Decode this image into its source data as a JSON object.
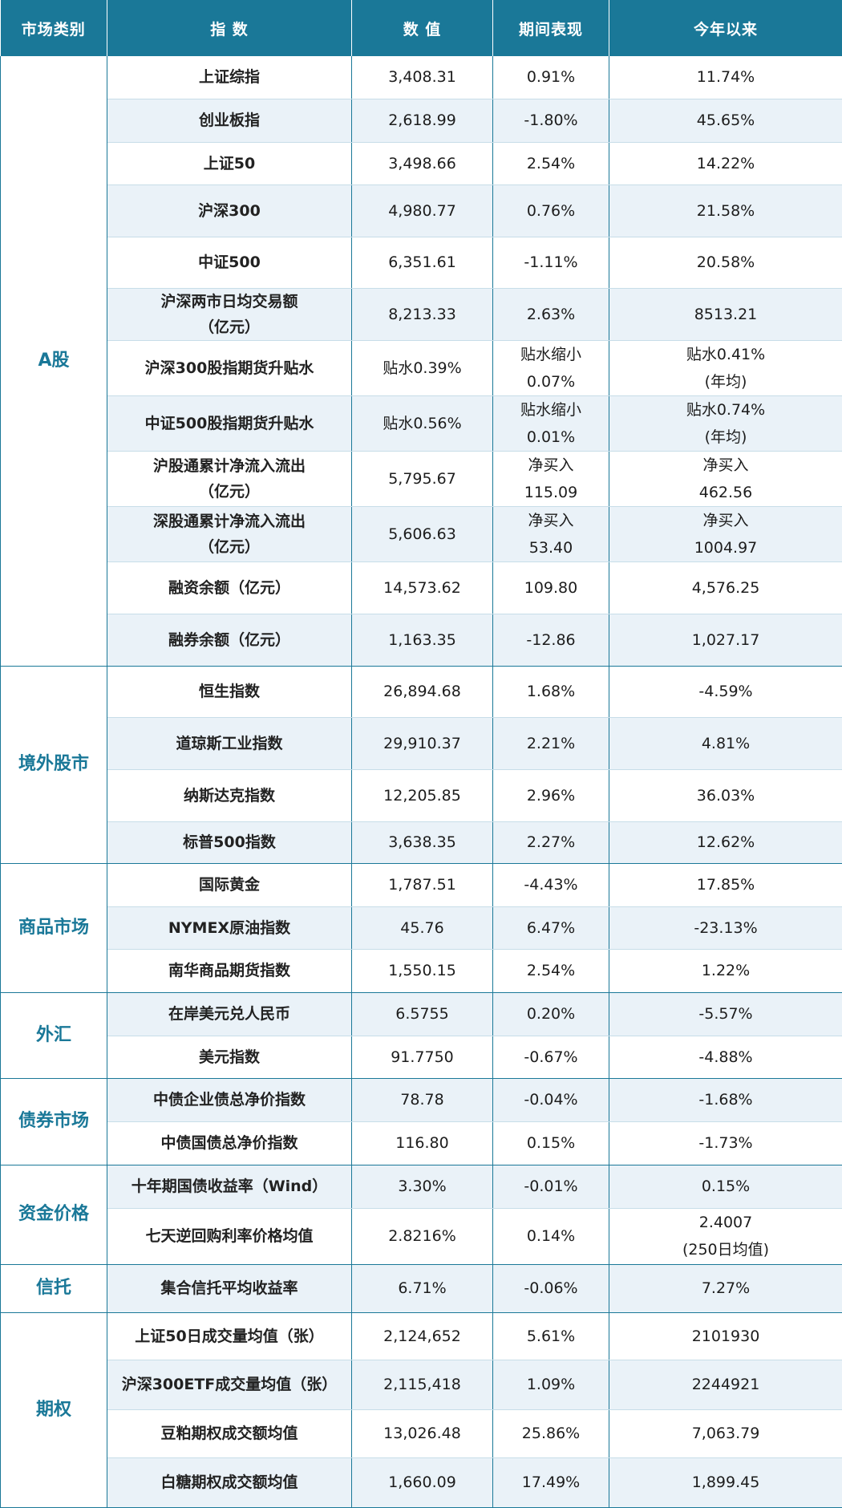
{
  "header": {
    "col_category": "市场类别",
    "col_index": "指 数",
    "col_value": "数 值",
    "col_period": "期间表现",
    "col_ytd": "今年以来"
  },
  "groups": [
    {
      "category": "A股",
      "rows": [
        {
          "index": "上证综指",
          "value": "3,408.31",
          "period": "0.91%",
          "ytd": "11.74%"
        },
        {
          "index": "创业板指",
          "value": "2,618.99",
          "period": "-1.80%",
          "ytd": "45.65%"
        },
        {
          "index": "上证50",
          "value": "3,498.66",
          "period": "2.54%",
          "ytd": "14.22%"
        },
        {
          "index": "沪深300",
          "value": "4,980.77",
          "period": "0.76%",
          "ytd": "21.58%"
        },
        {
          "index": "中证500",
          "value": "6,351.61",
          "period": "-1.11%",
          "ytd": "20.58%"
        },
        {
          "index": "沪深两市日均交易额\n（亿元）",
          "value": "8,213.33",
          "period": "2.63%",
          "ytd": "8513.21"
        },
        {
          "index": "沪深300股指期货升贴水",
          "value": "贴水0.39%",
          "period": "贴水缩小\n0.07%",
          "ytd": "贴水0.41%\n(年均)"
        },
        {
          "index": "中证500股指期货升贴水",
          "value": "贴水0.56%",
          "period": "贴水缩小\n0.01%",
          "ytd": "贴水0.74%\n(年均)"
        },
        {
          "index": "沪股通累计净流入流出\n（亿元）",
          "value": "5,795.67",
          "period": "净买入\n115.09",
          "ytd": "净买入\n462.56"
        },
        {
          "index": "深股通累计净流入流出\n（亿元）",
          "value": "5,606.63",
          "period": "净买入\n53.40",
          "ytd": "净买入\n1004.97"
        },
        {
          "index": "融资余额（亿元）",
          "value": "14,573.62",
          "period": "109.80",
          "ytd": "4,576.25"
        },
        {
          "index": "融券余额（亿元）",
          "value": "1,163.35",
          "period": "-12.86",
          "ytd": "1,027.17"
        }
      ]
    },
    {
      "category": "境外股市",
      "rows": [
        {
          "index": "恒生指数",
          "value": "26,894.68",
          "period": "1.68%",
          "ytd": "-4.59%"
        },
        {
          "index": "道琼斯工业指数",
          "value": "29,910.37",
          "period": "2.21%",
          "ytd": "4.81%"
        },
        {
          "index": "纳斯达克指数",
          "value": "12,205.85",
          "period": "2.96%",
          "ytd": "36.03%"
        },
        {
          "index": "标普500指数",
          "value": "3,638.35",
          "period": "2.27%",
          "ytd": "12.62%"
        }
      ]
    },
    {
      "category": "商品市场",
      "rows": [
        {
          "index": "国际黄金",
          "value": "1,787.51",
          "period": "-4.43%",
          "ytd": "17.85%"
        },
        {
          "index": "NYMEX原油指数",
          "value": "45.76",
          "period": "6.47%",
          "ytd": "-23.13%"
        },
        {
          "index": "南华商品期货指数",
          "value": "1,550.15",
          "period": "2.54%",
          "ytd": "1.22%"
        }
      ]
    },
    {
      "category": "外汇",
      "rows": [
        {
          "index": "在岸美元兑人民币",
          "value": "6.5755",
          "period": "0.20%",
          "ytd": "-5.57%"
        },
        {
          "index": "美元指数",
          "value": "91.7750",
          "period": "-0.67%",
          "ytd": "-4.88%"
        }
      ]
    },
    {
      "category": "债券市场",
      "rows": [
        {
          "index": "中债企业债总净价指数",
          "value": "78.78",
          "period": "-0.04%",
          "ytd": "-1.68%"
        },
        {
          "index": "中债国债总净价指数",
          "value": "116.80",
          "period": "0.15%",
          "ytd": "-1.73%"
        }
      ]
    },
    {
      "category": "资金价格",
      "rows": [
        {
          "index": "十年期国债收益率（Wind）",
          "value": "3.30%",
          "period": "-0.01%",
          "ytd": "0.15%"
        },
        {
          "index": "七天逆回购利率价格均值",
          "value": "2.8216%",
          "period": "0.14%",
          "ytd": "2.4007\n(250日均值)"
        }
      ]
    },
    {
      "category": "信托",
      "rows": [
        {
          "index": "集合信托平均收益率",
          "value": "6.71%",
          "period": "-0.06%",
          "ytd": "7.27%"
        }
      ]
    },
    {
      "category": "期权",
      "rows": [
        {
          "index": "上证50日成交量均值（张）",
          "value": "2,124,652",
          "period": "5.61%",
          "ytd": "2101930"
        },
        {
          "index": "沪深300ETF成交量均值（张）",
          "value": "2,115,418",
          "period": "1.09%",
          "ytd": "2244921"
        },
        {
          "index": "豆粕期权成交额均值",
          "value": "13,026.48",
          "period": "25.86%",
          "ytd": "7,063.79"
        },
        {
          "index": "白糖期权成交额均值",
          "value": "1,660.09",
          "period": "17.49%",
          "ytd": "1,899.45"
        }
      ]
    }
  ]
}
